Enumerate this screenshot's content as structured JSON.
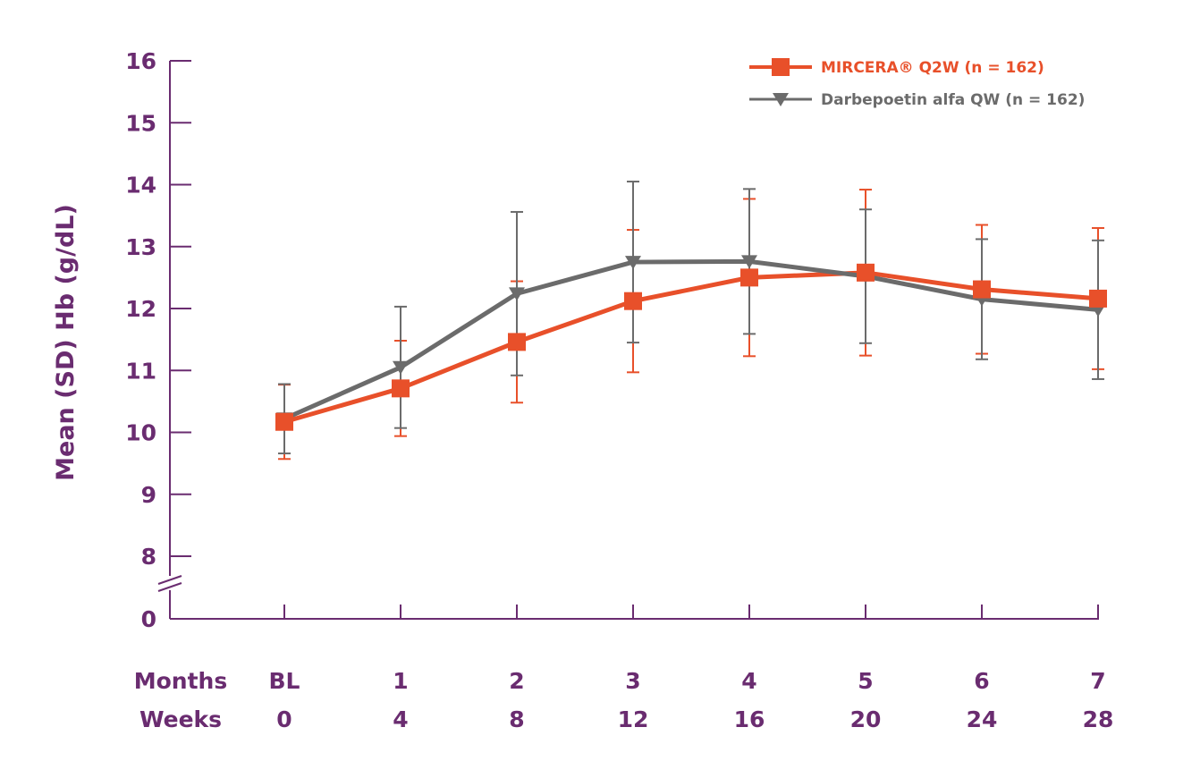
{
  "chart_data": {
    "type": "line",
    "ylabel": "Mean (SD) Hb (g/dL)",
    "yticks": [
      "16",
      "15",
      "14",
      "13",
      "12",
      "11",
      "10",
      "9",
      "8",
      "0"
    ],
    "ylim": [
      8,
      16
    ],
    "y_axis_break": true,
    "x_rows": [
      {
        "label": "Months",
        "ticks": [
          "BL",
          "1",
          "2",
          "3",
          "4",
          "5",
          "6",
          "7"
        ]
      },
      {
        "label": "Weeks",
        "ticks": [
          "0",
          "4",
          "8",
          "12",
          "16",
          "20",
          "24",
          "28"
        ]
      }
    ],
    "x": [
      0,
      4,
      8,
      12,
      16,
      20,
      24,
      28
    ],
    "legend_position": "top-right",
    "series": [
      {
        "name": "MIRCERA® Q2W (n = 162)",
        "color": "#e8502a",
        "marker": "square",
        "values": [
          10.17,
          10.71,
          11.46,
          12.12,
          12.5,
          12.58,
          12.31,
          12.16
        ],
        "sd": [
          0.6,
          0.77,
          0.98,
          1.15,
          1.27,
          1.34,
          1.04,
          1.14
        ]
      },
      {
        "name": "Darbepoetin alfa QW (n = 162)",
        "color": "#6b6b6b",
        "marker": "triangle-down",
        "values": [
          10.22,
          11.05,
          12.24,
          12.75,
          12.76,
          12.52,
          12.15,
          11.98
        ],
        "sd": [
          0.56,
          0.98,
          1.32,
          1.3,
          1.17,
          1.08,
          0.97,
          1.12
        ]
      }
    ]
  },
  "colors": {
    "axis": "#6a2c70",
    "text": "#6a2c70"
  }
}
